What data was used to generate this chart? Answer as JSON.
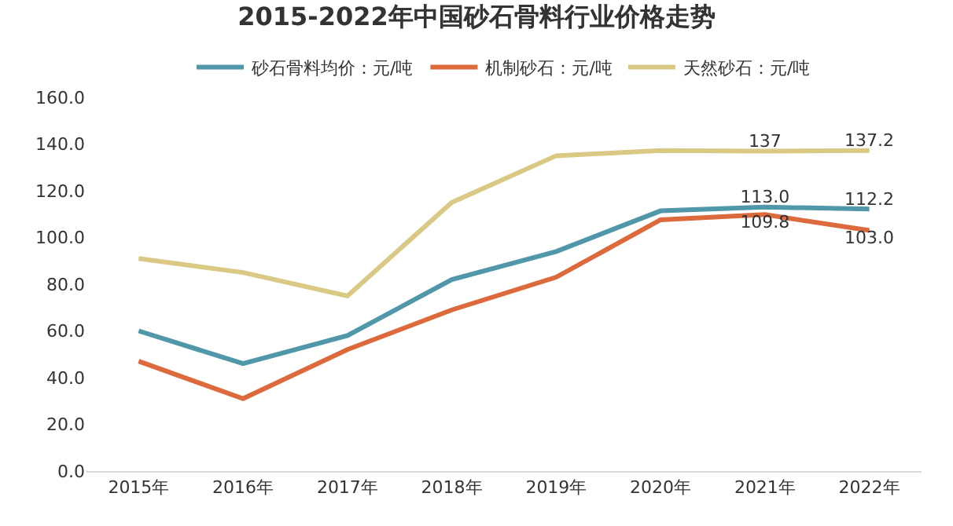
{
  "chart_data": {
    "type": "line",
    "title": "2015-2022年中国砂石骨料行业价格走势",
    "categories": [
      "2015年",
      "2016年",
      "2017年",
      "2018年",
      "2019年",
      "2020年",
      "2021年",
      "2022年"
    ],
    "series": [
      {
        "name": "砂石骨料均价：元/吨",
        "color": "#4f97a9",
        "values": [
          60,
          46,
          58,
          82,
          94,
          111.4,
          113.0,
          112.2
        ],
        "value_labels": [
          null,
          null,
          null,
          null,
          null,
          null,
          "113.0",
          "112.2"
        ]
      },
      {
        "name": "机制砂石：元/吨",
        "color": "#dd6a3d",
        "values": [
          47,
          31,
          52,
          69,
          83,
          107.6,
          109.8,
          103.0
        ],
        "value_labels": [
          null,
          null,
          null,
          null,
          null,
          null,
          "109.8",
          "103.0"
        ]
      },
      {
        "name": "天然砂石：元/吨",
        "color": "#d9c985",
        "values": [
          91,
          85,
          75,
          115,
          135,
          137.2,
          137,
          137.2
        ],
        "value_labels": [
          null,
          null,
          null,
          null,
          null,
          null,
          "137",
          "137.2"
        ]
      }
    ],
    "ylim": [
      0,
      160
    ],
    "yticks": [
      {
        "value": 0,
        "label": "0.0"
      },
      {
        "value": 20,
        "label": "20.0"
      },
      {
        "value": 40,
        "label": "40.0"
      },
      {
        "value": 60,
        "label": "60.0"
      },
      {
        "value": 80,
        "label": "80.0"
      },
      {
        "value": 100,
        "label": "100.0"
      },
      {
        "value": 120,
        "label": "120.0"
      },
      {
        "value": 140,
        "label": "140.0"
      },
      {
        "value": 160,
        "label": "160.0"
      }
    ],
    "grid": false,
    "legend": "top",
    "marker": "none",
    "line_style": "solid"
  }
}
